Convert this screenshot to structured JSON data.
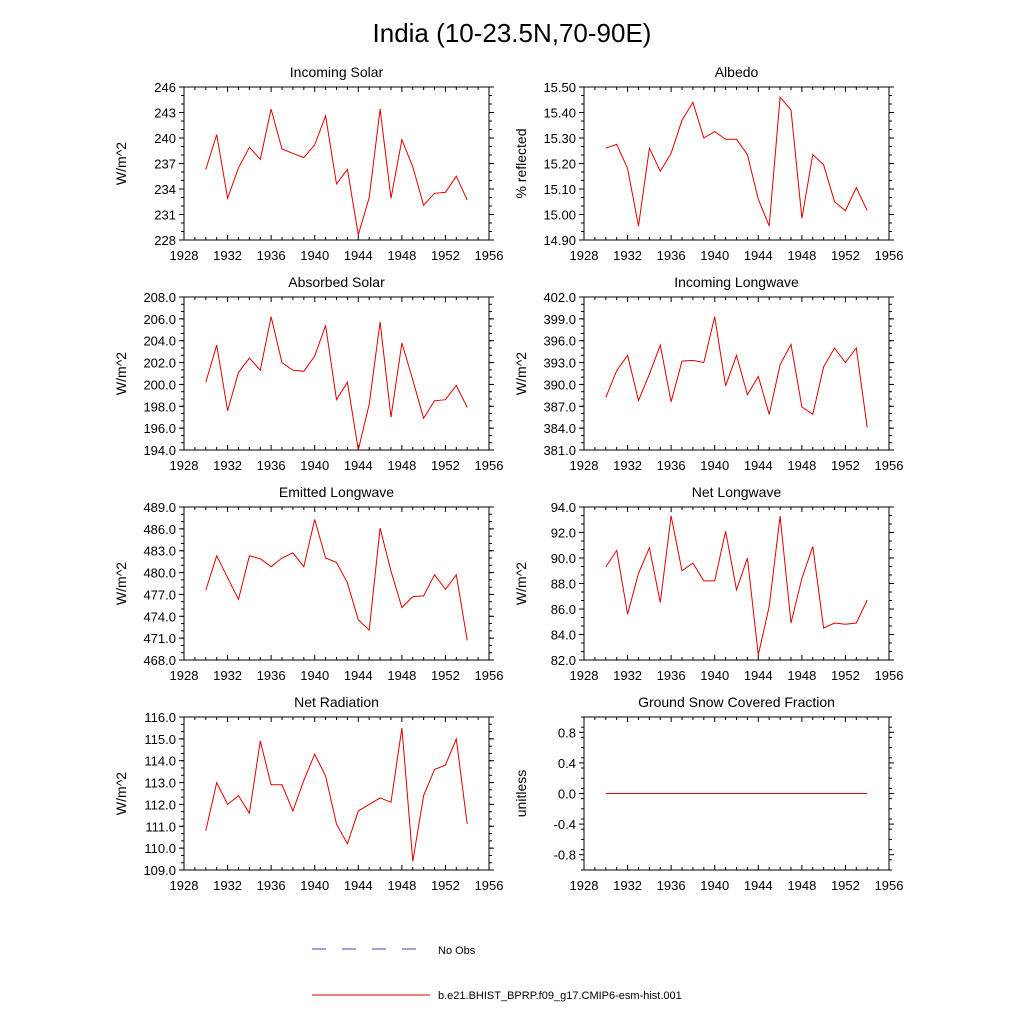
{
  "figure": {
    "title": "India (10-23.5N,70-90E)",
    "legend": {
      "entries": [
        {
          "label": "No Obs",
          "style": "dashed",
          "color": "#4a4aa8"
        },
        {
          "label": "b.e21.BHIST_BPRP.f09_g17.CMIP6-esm-hist.001",
          "style": "solid",
          "color": "#e00000"
        }
      ]
    }
  },
  "chart_data": [
    {
      "type": "line",
      "title": "Incoming Solar",
      "ylabel": "W/m^2",
      "xlim": [
        1928,
        1956
      ],
      "ylim": [
        228,
        246
      ],
      "x_ticks": [
        1928,
        1932,
        1936,
        1940,
        1944,
        1948,
        1952,
        1956
      ],
      "y_ticks": [
        "228",
        "231",
        "234",
        "237",
        "240",
        "243",
        "246"
      ],
      "series": [
        {
          "name": "b.e21.BHIST_BPRP.f09_g17.CMIP6-esm-hist.001",
          "x": [
            1930,
            1931,
            1932,
            1933,
            1934,
            1935,
            1936,
            1937,
            1938,
            1939,
            1940,
            1941,
            1942,
            1943,
            1944,
            1945,
            1946,
            1947,
            1948,
            1949,
            1950,
            1951,
            1952,
            1953,
            1954
          ],
          "values": [
            236.3,
            240.4,
            232.9,
            236.5,
            238.9,
            237.5,
            243.4,
            238.7,
            238.2,
            237.7,
            239.2,
            242.6,
            234.6,
            236.3,
            228.6,
            233.0,
            243.4,
            232.9,
            239.8,
            236.6,
            232.1,
            233.5,
            233.6,
            235.5,
            232.7
          ]
        }
      ]
    },
    {
      "type": "line",
      "title": "Albedo",
      "ylabel": "% reflected",
      "xlim": [
        1928,
        1956
      ],
      "ylim": [
        14.9,
        15.5
      ],
      "x_ticks": [
        1928,
        1932,
        1936,
        1940,
        1944,
        1948,
        1952,
        1956
      ],
      "y_ticks": [
        "14.90",
        "15.00",
        "15.10",
        "15.20",
        "15.30",
        "15.40",
        "15.50"
      ],
      "series": [
        {
          "name": "b.e21.BHIST_BPRP.f09_g17.CMIP6-esm-hist.001",
          "x": [
            1930,
            1931,
            1932,
            1933,
            1934,
            1935,
            1936,
            1937,
            1938,
            1939,
            1940,
            1941,
            1942,
            1943,
            1944,
            1945,
            1946,
            1947,
            1948,
            1949,
            1950,
            1951,
            1952,
            1953,
            1954
          ],
          "values": [
            15.26,
            15.275,
            15.18,
            14.955,
            15.26,
            15.17,
            15.24,
            15.37,
            15.44,
            15.3,
            15.325,
            15.295,
            15.295,
            15.235,
            15.06,
            14.955,
            15.46,
            15.41,
            14.985,
            15.235,
            15.195,
            15.05,
            15.015,
            15.105,
            15.015
          ]
        }
      ]
    },
    {
      "type": "line",
      "title": "Absorbed Solar",
      "ylabel": "W/m^2",
      "xlim": [
        1928,
        1956
      ],
      "ylim": [
        194,
        208
      ],
      "x_ticks": [
        1928,
        1932,
        1936,
        1940,
        1944,
        1948,
        1952,
        1956
      ],
      "y_ticks": [
        "194.0",
        "196.0",
        "198.0",
        "200.0",
        "202.0",
        "204.0",
        "206.0",
        "208.0"
      ],
      "series": [
        {
          "name": "b.e21.BHIST_BPRP.f09_g17.CMIP6-esm-hist.001",
          "x": [
            1930,
            1931,
            1932,
            1933,
            1934,
            1935,
            1936,
            1937,
            1938,
            1939,
            1940,
            1941,
            1942,
            1943,
            1944,
            1945,
            1946,
            1947,
            1948,
            1949,
            1950,
            1951,
            1952,
            1953,
            1954
          ],
          "values": [
            200.2,
            203.6,
            197.6,
            201.1,
            202.4,
            201.3,
            206.2,
            202.0,
            201.3,
            201.2,
            202.6,
            205.4,
            198.6,
            200.2,
            194.0,
            198.2,
            205.7,
            197.0,
            203.8,
            200.4,
            196.9,
            198.5,
            198.6,
            199.9,
            197.9
          ]
        }
      ]
    },
    {
      "type": "line",
      "title": "Incoming Longwave",
      "ylabel": "W/m^2",
      "xlim": [
        1928,
        1956
      ],
      "ylim": [
        381,
        402
      ],
      "x_ticks": [
        1928,
        1932,
        1936,
        1940,
        1944,
        1948,
        1952,
        1956
      ],
      "y_ticks": [
        "381.0",
        "384.0",
        "387.0",
        "390.0",
        "393.0",
        "396.0",
        "399.0",
        "402.0"
      ],
      "series": [
        {
          "name": "b.e21.BHIST_BPRP.f09_g17.CMIP6-esm-hist.001",
          "x": [
            1930,
            1931,
            1932,
            1933,
            1934,
            1935,
            1936,
            1937,
            1938,
            1939,
            1940,
            1941,
            1942,
            1943,
            1944,
            1945,
            1946,
            1947,
            1948,
            1949,
            1950,
            1951,
            1952,
            1953,
            1954
          ],
          "values": [
            388.2,
            391.9,
            394.0,
            387.8,
            391.4,
            395.4,
            387.6,
            393.2,
            393.3,
            393.0,
            399.3,
            389.8,
            394.0,
            388.6,
            391.1,
            385.9,
            392.7,
            395.5,
            386.9,
            385.9,
            392.4,
            395.0,
            393.0,
            395.0,
            384.1
          ]
        }
      ]
    },
    {
      "type": "line",
      "title": "Emitted Longwave",
      "ylabel": "W/m^2",
      "xlim": [
        1928,
        1956
      ],
      "ylim": [
        468,
        489
      ],
      "x_ticks": [
        1928,
        1932,
        1936,
        1940,
        1944,
        1948,
        1952,
        1956
      ],
      "y_ticks": [
        "468.0",
        "471.0",
        "474.0",
        "477.0",
        "480.0",
        "483.0",
        "486.0",
        "489.0"
      ],
      "series": [
        {
          "name": "b.e21.BHIST_BPRP.f09_g17.CMIP6-esm-hist.001",
          "x": [
            1930,
            1931,
            1932,
            1933,
            1934,
            1935,
            1936,
            1937,
            1938,
            1939,
            1940,
            1941,
            1942,
            1943,
            1944,
            1945,
            1946,
            1947,
            1948,
            1949,
            1950,
            1951,
            1952,
            1953,
            1954
          ],
          "values": [
            477.6,
            482.3,
            479.3,
            476.3,
            482.3,
            481.9,
            480.8,
            482.0,
            482.7,
            480.8,
            487.3,
            482.0,
            481.4,
            478.6,
            473.5,
            472.1,
            486.1,
            480.2,
            475.2,
            476.7,
            476.8,
            479.7,
            477.7,
            479.7,
            470.7
          ]
        }
      ]
    },
    {
      "type": "line",
      "title": "Net Longwave",
      "ylabel": "W/m^2",
      "xlim": [
        1928,
        1956
      ],
      "ylim": [
        82,
        94
      ],
      "x_ticks": [
        1928,
        1932,
        1936,
        1940,
        1944,
        1948,
        1952,
        1956
      ],
      "y_ticks": [
        "82.0",
        "84.0",
        "86.0",
        "88.0",
        "90.0",
        "92.0",
        "94.0"
      ],
      "series": [
        {
          "name": "b.e21.BHIST_BPRP.f09_g17.CMIP6-esm-hist.001",
          "x": [
            1930,
            1931,
            1932,
            1933,
            1934,
            1935,
            1936,
            1937,
            1938,
            1939,
            1940,
            1941,
            1942,
            1943,
            1944,
            1945,
            1946,
            1947,
            1948,
            1949,
            1950,
            1951,
            1952,
            1953,
            1954
          ],
          "values": [
            89.3,
            90.6,
            85.6,
            88.8,
            90.8,
            86.5,
            93.3,
            89.0,
            89.6,
            88.2,
            88.2,
            92.1,
            87.5,
            90.0,
            82.4,
            86.2,
            93.3,
            84.9,
            88.4,
            90.9,
            84.5,
            84.9,
            84.8,
            84.9,
            86.7
          ]
        }
      ]
    },
    {
      "type": "line",
      "title": "Net Radiation",
      "ylabel": "W/m^2",
      "xlim": [
        1928,
        1956
      ],
      "ylim": [
        109,
        116
      ],
      "x_ticks": [
        1928,
        1932,
        1936,
        1940,
        1944,
        1948,
        1952,
        1956
      ],
      "y_ticks": [
        "109.0",
        "110.0",
        "111.0",
        "112.0",
        "113.0",
        "114.0",
        "115.0",
        "116.0"
      ],
      "series": [
        {
          "name": "b.e21.BHIST_BPRP.f09_g17.CMIP6-esm-hist.001",
          "x": [
            1930,
            1931,
            1932,
            1933,
            1934,
            1935,
            1936,
            1937,
            1938,
            1939,
            1940,
            1941,
            1942,
            1943,
            1944,
            1945,
            1946,
            1947,
            1948,
            1949,
            1950,
            1951,
            1952,
            1953,
            1954
          ],
          "values": [
            110.8,
            113.0,
            112.0,
            112.4,
            111.6,
            114.9,
            112.9,
            112.9,
            111.7,
            113.1,
            114.3,
            113.3,
            111.1,
            110.2,
            111.7,
            112.0,
            112.3,
            112.1,
            115.5,
            109.4,
            112.4,
            113.6,
            113.8,
            115.0,
            111.1
          ]
        }
      ]
    },
    {
      "type": "line",
      "title": "Ground Snow Covered Fraction",
      "ylabel": "unitless",
      "xlim": [
        1928,
        1956
      ],
      "ylim": [
        -1.0,
        1.0
      ],
      "x_ticks": [
        1928,
        1932,
        1936,
        1940,
        1944,
        1948,
        1952,
        1956
      ],
      "y_ticks": [
        "-0.8",
        "-0.4",
        "0.0",
        "0.4",
        "0.8"
      ],
      "series": [
        {
          "name": "b.e21.BHIST_BPRP.f09_g17.CMIP6-esm-hist.001",
          "x": [
            1930,
            1954
          ],
          "values": [
            0.0,
            0.0
          ]
        }
      ]
    }
  ]
}
